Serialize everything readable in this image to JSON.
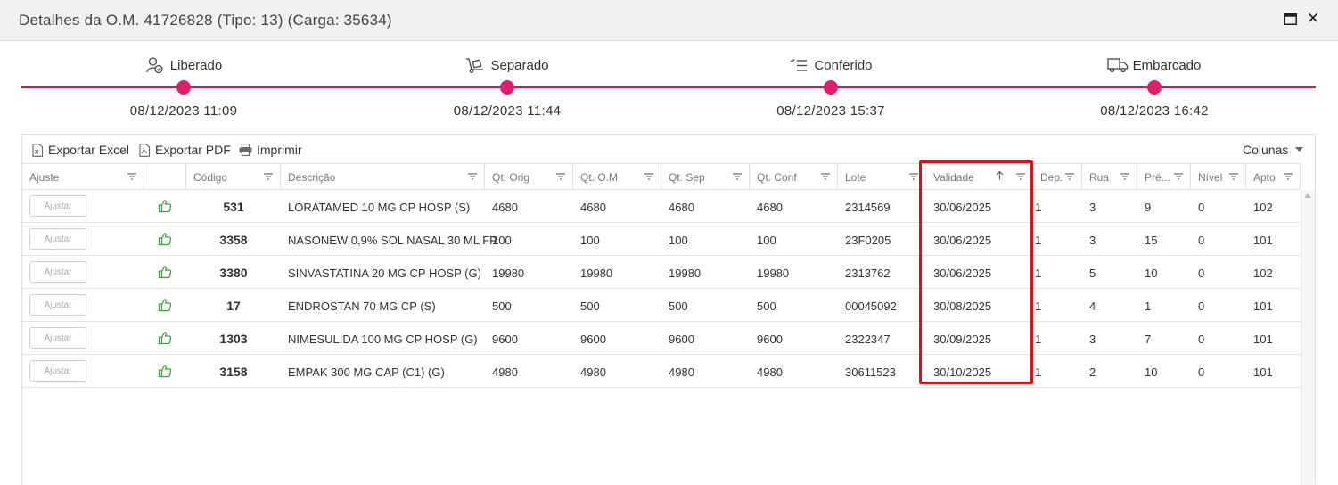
{
  "window": {
    "title": "Detalhes da O.M. 41726828 (Tipo: 13) (Carga: 35634)",
    "maximize_icon": "maximize-icon",
    "close_glyph": "✕"
  },
  "timeline": {
    "steps": [
      {
        "label": "Liberado",
        "date": "08/12/2023 11:09",
        "icon": "user-check-icon"
      },
      {
        "label": "Separado",
        "date": "08/12/2023 11:44",
        "icon": "hand-truck-icon"
      },
      {
        "label": "Conferido",
        "date": "08/12/2023 15:37",
        "icon": "checklist-icon"
      },
      {
        "label": "Embarcado",
        "date": "08/12/2023 16:42",
        "icon": "truck-icon"
      }
    ],
    "accent_color": "#e01e6e"
  },
  "toolbar": {
    "export_excel": "Exportar Excel",
    "export_pdf": "Exportar PDF",
    "print": "Imprimir",
    "columns": "Colunas"
  },
  "table": {
    "columns": {
      "ajuste": "Ajuste",
      "codigo": "Código",
      "descricao": "Descrição",
      "qt_orig": "Qt. Orig",
      "qt_om": "Qt. O.M",
      "qt_sep": "Qt. Sep",
      "qt_conf": "Qt. Conf",
      "lote": "Lote",
      "validade": "Validade",
      "dep": "Dep.",
      "rua": "Rua",
      "pre": "Pré...",
      "nivel": "Nível",
      "apto": "Apto"
    },
    "ajustar_label": "Ajustar",
    "rows": [
      {
        "codigo": "531",
        "descricao": "LORATAMED 10 MG CP HOSP (S)",
        "qt_orig": "4680",
        "qt_om": "4680",
        "qt_sep": "4680",
        "qt_conf": "4680",
        "lote": "2314569",
        "validade": "30/06/2025",
        "dep": "1",
        "rua": "3",
        "pre": "9",
        "nivel": "0",
        "apto": "102"
      },
      {
        "codigo": "3358",
        "descricao": "NASONEW 0,9% SOL NASAL 30 ML FR",
        "qt_orig": "100",
        "qt_om": "100",
        "qt_sep": "100",
        "qt_conf": "100",
        "lote": "23F0205",
        "validade": "30/06/2025",
        "dep": "1",
        "rua": "3",
        "pre": "15",
        "nivel": "0",
        "apto": "101"
      },
      {
        "codigo": "3380",
        "descricao": "SINVASTATINA 20 MG CP HOSP (G)",
        "qt_orig": "19980",
        "qt_om": "19980",
        "qt_sep": "19980",
        "qt_conf": "19980",
        "lote": "2313762",
        "validade": "30/06/2025",
        "dep": "1",
        "rua": "5",
        "pre": "10",
        "nivel": "0",
        "apto": "102"
      },
      {
        "codigo": "17",
        "descricao": "ENDROSTAN 70 MG CP (S)",
        "qt_orig": "500",
        "qt_om": "500",
        "qt_sep": "500",
        "qt_conf": "500",
        "lote": "00045092",
        "validade": "30/08/2025",
        "dep": "1",
        "rua": "4",
        "pre": "1",
        "nivel": "0",
        "apto": "101"
      },
      {
        "codigo": "1303",
        "descricao": "NIMESULIDA 100 MG CP HOSP (G)",
        "qt_orig": "9600",
        "qt_om": "9600",
        "qt_sep": "9600",
        "qt_conf": "9600",
        "lote": "2322347",
        "validade": "30/09/2025",
        "dep": "1",
        "rua": "3",
        "pre": "7",
        "nivel": "0",
        "apto": "101"
      },
      {
        "codigo": "3158",
        "descricao": "EMPAK 300 MG CAP (C1) (G)",
        "qt_orig": "4980",
        "qt_om": "4980",
        "qt_sep": "4980",
        "qt_conf": "4980",
        "lote": "30611523",
        "validade": "30/10/2025",
        "dep": "1",
        "rua": "2",
        "pre": "10",
        "nivel": "0",
        "apto": "101"
      }
    ],
    "sorted_column": "validade",
    "sort_direction": "ascending",
    "highlight_color": "#e01010",
    "thumb_color": "#3aa63a"
  }
}
